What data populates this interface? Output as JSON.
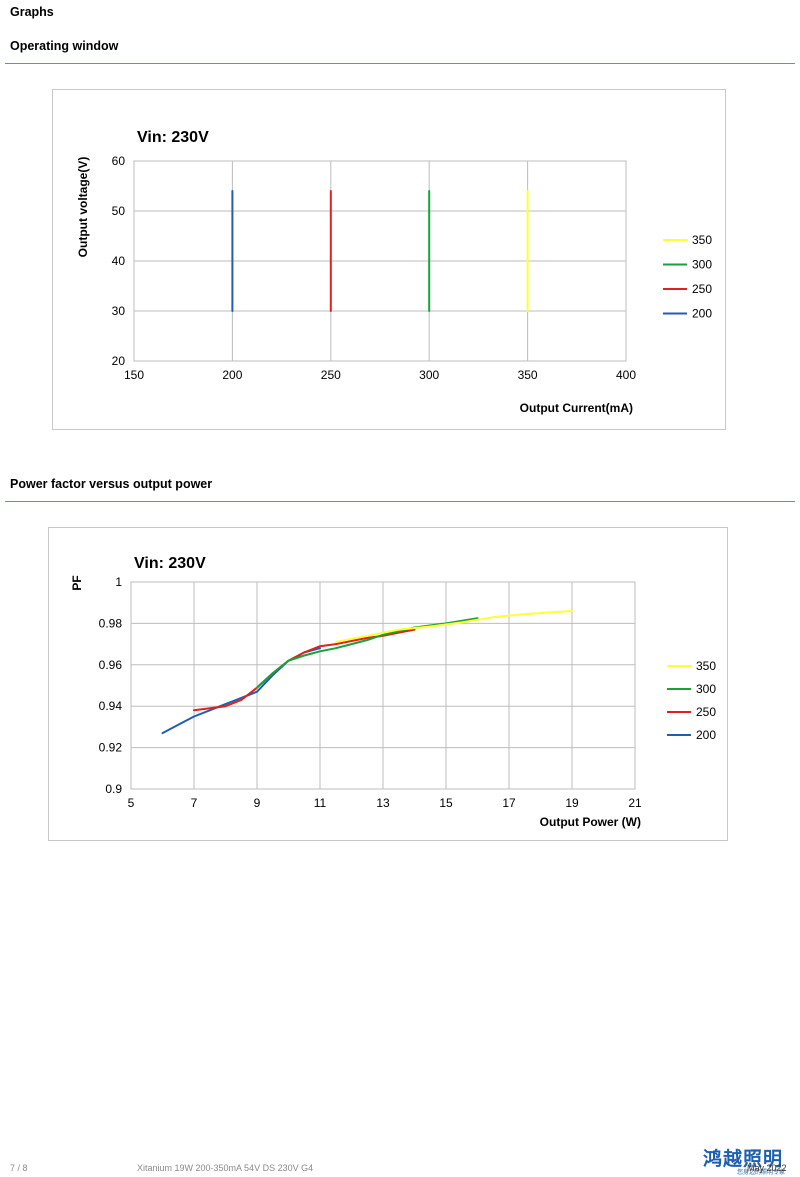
{
  "page": {
    "section_title": "Graphs",
    "subsection1": "Operating window",
    "subsection2": "Power factor versus output power",
    "footer_page": "7 / 8",
    "footer_product": "Xitanium 19W 200-350mA 54V DS 230V G4",
    "footer_date": "May 2022",
    "logo_text": "鸿越照明",
    "logo_subtext": "您身边的照明专家"
  },
  "chart_data": [
    {
      "type": "line",
      "title": "Vin: 230V",
      "xlabel": "Output Current(mA)",
      "ylabel": "Output voltage(V)",
      "xlim": [
        150,
        400
      ],
      "ylim": [
        20,
        60
      ],
      "xticks": [
        "150",
        "200",
        "250",
        "300",
        "350",
        "400"
      ],
      "yticks": [
        "20",
        "30",
        "40",
        "50",
        "60"
      ],
      "grid": true,
      "legend_position": "right",
      "series": [
        {
          "name": "350",
          "color": "#ffff33",
          "x": [
            350,
            350
          ],
          "y": [
            30,
            54
          ]
        },
        {
          "name": "300",
          "color": "#17a23a",
          "x": [
            300,
            300
          ],
          "y": [
            30,
            54
          ]
        },
        {
          "name": "250",
          "color": "#e0211d",
          "x": [
            250,
            250
          ],
          "y": [
            30,
            54
          ]
        },
        {
          "name": "200",
          "color": "#1f5fb0",
          "x": [
            200,
            200
          ],
          "y": [
            30,
            54
          ]
        }
      ]
    },
    {
      "type": "line",
      "title": "Vin: 230V",
      "xlabel": "Output Power (W)",
      "ylabel": "PF",
      "xlim": [
        5,
        21
      ],
      "ylim": [
        0.9,
        1
      ],
      "xticks": [
        "5",
        "7",
        "9",
        "11",
        "13",
        "15",
        "17",
        "19",
        "21"
      ],
      "yticks": [
        "0.9",
        "0.92",
        "0.94",
        "0.96",
        "0.98",
        "1"
      ],
      "grid": true,
      "legend_position": "right",
      "series": [
        {
          "name": "350",
          "color": "#ffff33",
          "x": [
            11.5,
            12.5,
            13.5,
            14.5,
            15.5,
            16.5,
            17.5,
            18.5,
            19
          ],
          "y": [
            0.971,
            0.974,
            0.977,
            0.9785,
            0.9805,
            0.983,
            0.9845,
            0.9855,
            0.986
          ]
        },
        {
          "name": "300",
          "color": "#17a23a",
          "x": [
            9,
            9.5,
            10,
            10.5,
            11,
            11.5,
            12,
            12.5,
            13,
            14,
            15,
            16
          ],
          "y": [
            0.949,
            0.956,
            0.962,
            0.9645,
            0.9665,
            0.968,
            0.97,
            0.972,
            0.9745,
            0.978,
            0.98,
            0.9825
          ]
        },
        {
          "name": "250",
          "color": "#e0211d",
          "x": [
            7,
            7.5,
            8,
            8.5,
            9,
            9.5,
            10,
            10.5,
            11,
            11.5,
            12,
            12.5,
            13,
            13.5,
            14
          ],
          "y": [
            0.938,
            0.939,
            0.94,
            0.943,
            0.949,
            0.956,
            0.962,
            0.966,
            0.969,
            0.97,
            0.9715,
            0.973,
            0.974,
            0.9755,
            0.977
          ]
        },
        {
          "name": "200",
          "color": "#1f5fb0",
          "x": [
            6,
            6.5,
            7,
            7.5,
            8,
            8.5,
            9,
            9.5,
            10,
            10.5,
            11
          ],
          "y": [
            0.927,
            0.931,
            0.935,
            0.938,
            0.941,
            0.944,
            0.947,
            0.955,
            0.962,
            0.966,
            0.968
          ]
        }
      ]
    }
  ]
}
